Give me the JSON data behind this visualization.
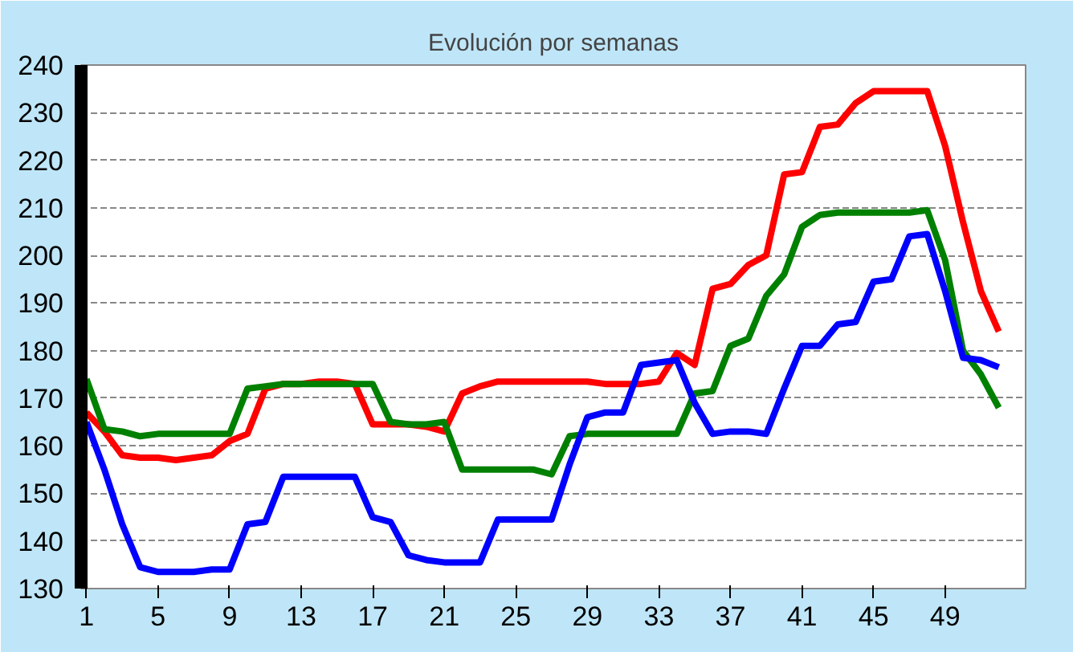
{
  "chart_data": {
    "type": "line",
    "title": "Evolución por semanas",
    "x": [
      1,
      2,
      3,
      4,
      5,
      6,
      7,
      8,
      9,
      10,
      11,
      12,
      13,
      14,
      15,
      16,
      17,
      18,
      19,
      20,
      21,
      22,
      23,
      24,
      25,
      26,
      27,
      28,
      29,
      30,
      31,
      32,
      33,
      34,
      35,
      36,
      37,
      38,
      39,
      40,
      41,
      42,
      43,
      44,
      45,
      46,
      47,
      48,
      49,
      50,
      51,
      52
    ],
    "series": [
      {
        "color": "#ff0000",
        "values": [
          167,
          163,
          158,
          157.5,
          157.5,
          157,
          157.5,
          158,
          161,
          162.5,
          172,
          173,
          173,
          173.5,
          173.5,
          173,
          164.5,
          164.5,
          164.5,
          164,
          163,
          171,
          172.5,
          173.5,
          173.5,
          173.5,
          173.5,
          173.5,
          173.5,
          173,
          173,
          173,
          173.5,
          179.5,
          177,
          193,
          194,
          198,
          200,
          217,
          217.5,
          227,
          227.5,
          232,
          234.5,
          234.5,
          234.5,
          234.5,
          223,
          207,
          192.5,
          184
        ]
      },
      {
        "color": "#008000",
        "values": [
          174,
          163.5,
          163,
          162,
          162.5,
          162.5,
          162.5,
          162.5,
          162.5,
          172,
          172.5,
          173,
          173,
          173,
          173,
          173,
          173,
          165,
          164.5,
          164.5,
          165,
          155,
          155,
          155,
          155,
          155,
          154,
          162,
          162.5,
          162.5,
          162.5,
          162.5,
          162.5,
          162.5,
          171,
          171.5,
          181,
          182.5,
          191.5,
          196,
          206,
          208.5,
          209,
          209,
          209,
          209,
          209,
          209.5,
          199,
          180,
          175,
          168
        ]
      },
      {
        "color": "#0000ff",
        "values": [
          165,
          155,
          143.5,
          134.5,
          133.5,
          133.5,
          133.5,
          134,
          134,
          143.5,
          144,
          153.5,
          153.5,
          153.5,
          153.5,
          153.5,
          145,
          144,
          137,
          136,
          135.5,
          135.5,
          135.5,
          144.5,
          144.5,
          144.5,
          144.5,
          156,
          166,
          167,
          167,
          177,
          177.5,
          178,
          169,
          162.5,
          163,
          163,
          162.5,
          172,
          181,
          181,
          185.5,
          186,
          194.5,
          195,
          204,
          204.5,
          192.5,
          178.5,
          178,
          176.5
        ]
      }
    ],
    "xlim": [
      0.7,
      53.5
    ],
    "xticks": [
      1,
      5,
      9,
      13,
      17,
      21,
      25,
      29,
      33,
      37,
      41,
      45,
      49
    ],
    "ylim": [
      130,
      240
    ],
    "yticks": [
      130,
      140,
      150,
      160,
      170,
      180,
      190,
      200,
      210,
      220,
      230,
      240
    ],
    "grid": "y",
    "marker": "none",
    "line_style": "solid"
  }
}
